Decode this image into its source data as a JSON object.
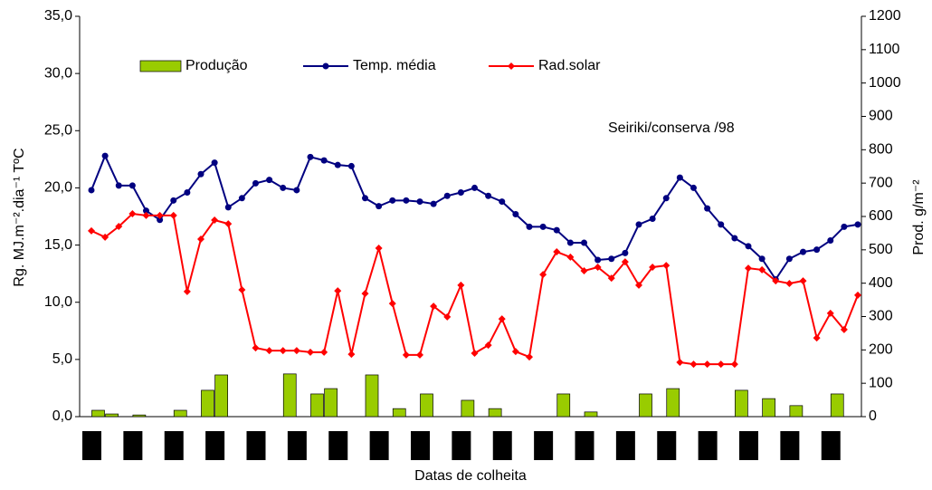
{
  "chart_data": {
    "type": "bar-line",
    "y_label": "Rg. MJ.m⁻².dia⁻¹ TºC",
    "y2_label": "Prod. g/m⁻²",
    "x_label": "Datas de colheita",
    "annotation": "Seiriki/conserva /98",
    "categories": [
      null,
      null,
      null,
      null,
      null,
      null,
      null,
      null,
      null,
      null,
      null,
      null,
      null,
      null,
      null,
      null,
      null,
      null,
      null,
      null,
      null,
      null,
      null,
      null,
      null,
      null,
      null,
      null,
      null,
      null,
      null,
      null,
      null,
      null,
      null,
      null,
      null,
      null,
      null,
      null,
      null,
      null,
      null,
      null,
      null,
      null,
      null,
      null,
      null,
      null,
      null,
      null,
      null,
      null,
      null,
      null,
      null
    ],
    "ylim": [
      0,
      35
    ],
    "yticks": [
      {
        "value": 0,
        "label": "0,0"
      },
      {
        "value": 5,
        "label": "5,0"
      },
      {
        "value": 10,
        "label": "10,0"
      },
      {
        "value": 15,
        "label": "15,0"
      },
      {
        "value": 20,
        "label": "20,0"
      },
      {
        "value": 25,
        "label": "25,0"
      },
      {
        "value": 30,
        "label": "30,0"
      },
      {
        "value": 35,
        "label": "35,0"
      }
    ],
    "y2lim": [
      0,
      1200
    ],
    "y2ticks": [
      0,
      100,
      200,
      300,
      400,
      500,
      600,
      700,
      800,
      900,
      1000,
      1100,
      1200
    ],
    "series": [
      {
        "name": "Produção",
        "type": "bar",
        "axis": "y2",
        "color": "#99cc00",
        "values": [
          19,
          8,
          null,
          5,
          null,
          null,
          19,
          null,
          79,
          125,
          null,
          null,
          null,
          null,
          128,
          null,
          68,
          84,
          null,
          null,
          125,
          null,
          24,
          null,
          68,
          null,
          null,
          49,
          null,
          24,
          null,
          null,
          null,
          null,
          68,
          null,
          14,
          null,
          null,
          null,
          68,
          null,
          84,
          null,
          null,
          null,
          null,
          79,
          null,
          54,
          null,
          33,
          null,
          null,
          68,
          null,
          null
        ]
      },
      {
        "name": "Temp. média",
        "type": "line",
        "color": "#000080",
        "values": [
          19.8,
          22.8,
          20.2,
          20.2,
          18.0,
          17.2,
          18.9,
          19.6,
          21.2,
          22.2,
          18.3,
          19.1,
          20.4,
          20.7,
          20.0,
          19.8,
          22.7,
          22.4,
          22.0,
          21.9,
          19.1,
          18.4,
          18.9,
          18.9,
          18.8,
          18.6,
          19.3,
          19.6,
          20.0,
          19.3,
          18.8,
          17.7,
          16.6,
          16.6,
          16.3,
          15.2,
          15.2,
          13.7,
          13.8,
          14.3,
          16.8,
          17.3,
          19.1,
          20.9,
          20.0,
          18.2,
          16.8,
          15.6,
          14.9,
          13.8,
          12.0,
          13.8,
          14.4,
          14.6,
          15.4,
          16.6,
          16.8
        ]
      },
      {
        "name": "Rad.solar",
        "type": "line",
        "axis": "y2",
        "color": "#ff0000",
        "values": [
          557,
          538,
          570,
          608,
          603,
          603,
          603,
          375,
          532,
          589,
          578,
          380,
          206,
          198,
          198,
          198,
          193,
          193,
          377,
          187,
          369,
          505,
          339,
          185,
          185,
          331,
          299,
          394,
          190,
          214,
          293,
          195,
          179,
          426,
          494,
          478,
          437,
          448,
          415,
          464,
          394,
          448,
          453,
          163,
          157,
          157,
          157,
          157,
          445,
          440,
          407,
          399,
          407,
          236,
          310,
          261,
          364
        ]
      }
    ]
  }
}
